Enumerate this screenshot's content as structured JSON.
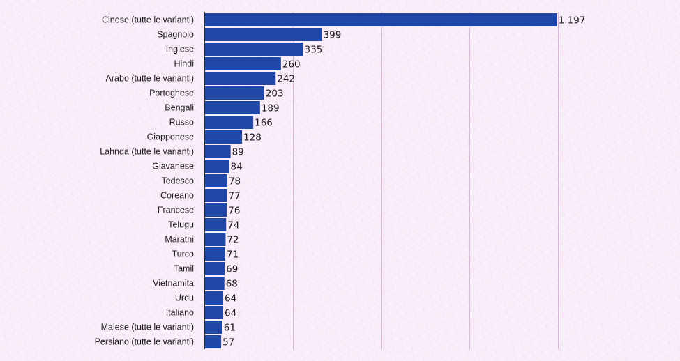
{
  "chart_data": {
    "type": "bar",
    "orientation": "horizontal",
    "title": "",
    "xlabel": "",
    "ylabel": "",
    "xlim": [
      0,
      1200
    ],
    "grid": true,
    "legend": "none",
    "bar_color": "#1f47a8",
    "categories": [
      "Cinese (tutte le varianti)",
      "Spagnolo",
      "Inglese",
      "Hindi",
      "Arabo (tutte le varianti)",
      "Portoghese",
      "Bengali",
      "Russo",
      "Giapponese",
      "Lahnda (tutte le varianti)",
      "Giavanese",
      "Tedesco",
      "Coreano",
      "Francese",
      "Telugu",
      "Marathi",
      "Turco",
      "Tamil",
      "Vietnamita",
      "Urdu",
      "Italiano",
      "Malese (tutte le varianti)",
      "Persiano (tutte le varianti)"
    ],
    "values": [
      1197,
      399,
      335,
      260,
      242,
      203,
      189,
      166,
      128,
      89,
      84,
      78,
      77,
      76,
      74,
      72,
      71,
      69,
      68,
      64,
      64,
      61,
      57
    ],
    "value_labels": [
      "1.197",
      "399",
      "335",
      "260",
      "242",
      "203",
      "189",
      "166",
      "128",
      "89",
      "84",
      "78",
      "77",
      "76",
      "74",
      "72",
      "71",
      "69",
      "68",
      "64",
      "64",
      "61",
      "57"
    ]
  }
}
